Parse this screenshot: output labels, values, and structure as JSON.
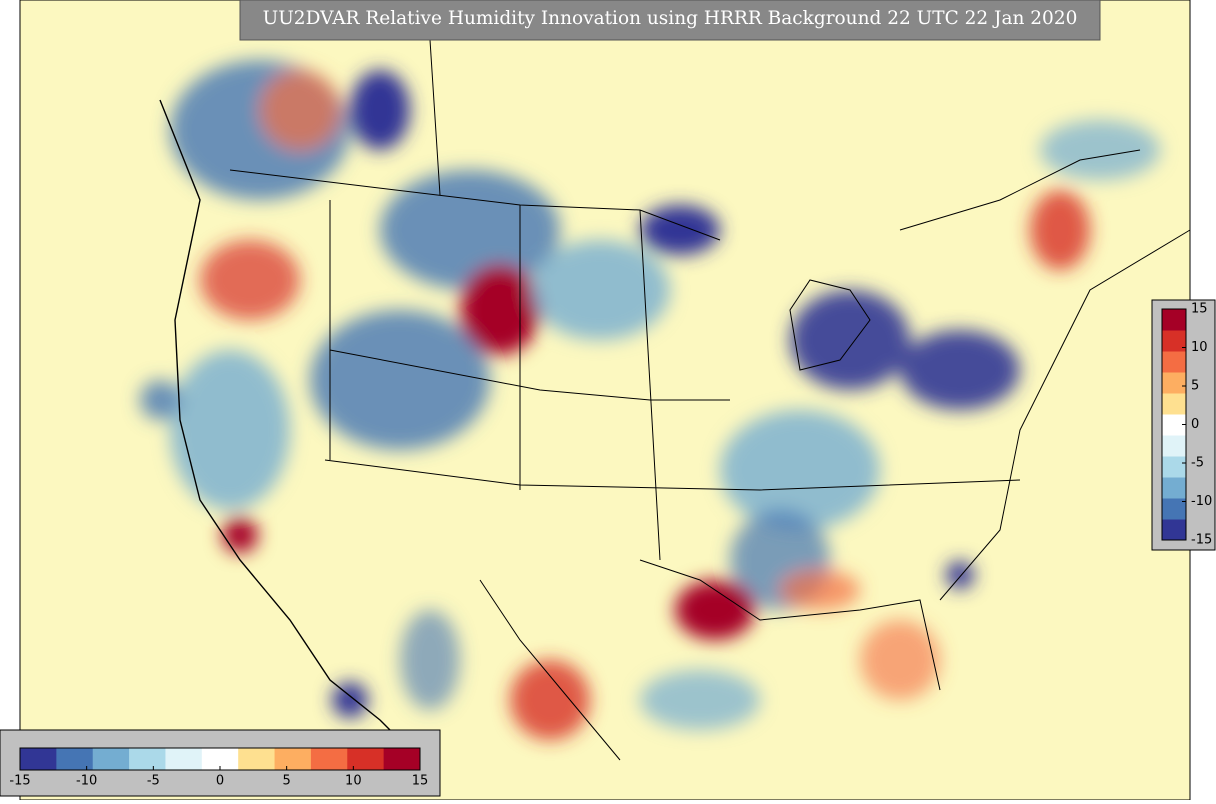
{
  "title": "UU2DVAR Relative Humidity Innovation using HRRR Background 22 UTC 22 Jan 2020",
  "colormap": [
    "#313695",
    "#4575b4",
    "#74add1",
    "#abd9e9",
    "#e0f3f8",
    "#ffffff",
    "#fee090",
    "#fdae61",
    "#f46d43",
    "#d73027",
    "#a50026"
  ],
  "colorbar_bottom": {
    "lim": [
      -15,
      15
    ],
    "ticks": [
      -15,
      -10,
      -5,
      0,
      5,
      10,
      15
    ]
  },
  "colorbar_right": {
    "lim": [
      -15,
      15
    ],
    "ticks": [
      15,
      10,
      5,
      0,
      -5,
      -10,
      -15
    ]
  }
}
